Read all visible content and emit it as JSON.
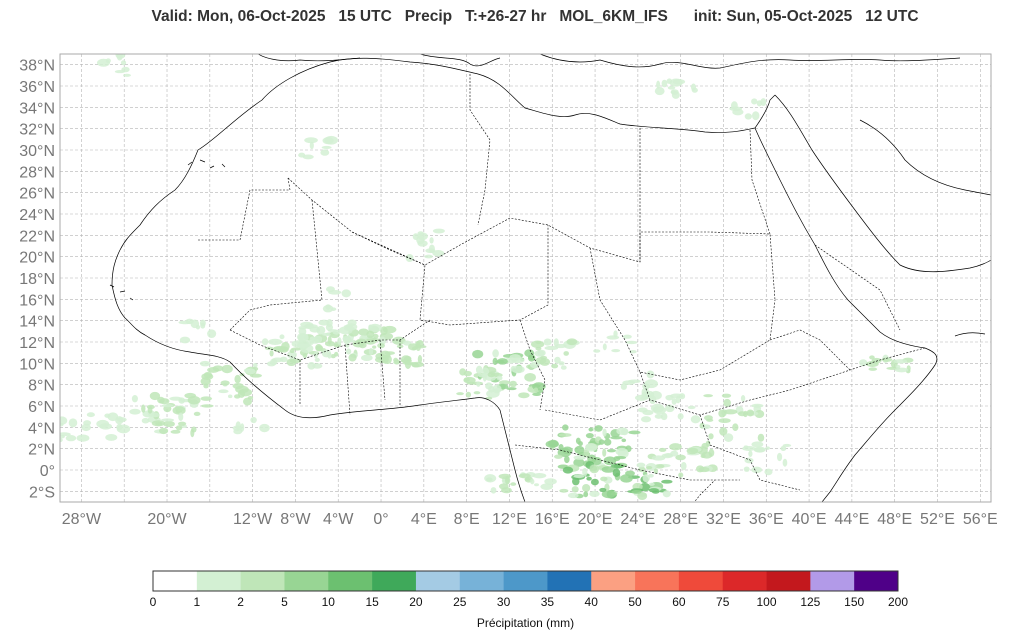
{
  "title": {
    "valid": "Valid: Mon, 06-Oct-2025   15 UTC   Precip   T:+26-27 hr   MOL_6KM_IFS",
    "init": "init: Sun, 05-Oct-2025   12 UTC"
  },
  "map": {
    "lon_range": [
      -30,
      57
    ],
    "lat_range": [
      -3,
      39
    ],
    "grid": true,
    "lat_ticks": [
      "38°N",
      "36°N",
      "34°N",
      "32°N",
      "30°N",
      "28°N",
      "26°N",
      "24°N",
      "22°N",
      "20°N",
      "18°N",
      "16°N",
      "14°N",
      "12°N",
      "10°N",
      "8°N",
      "6°N",
      "4°N",
      "2°N",
      "0°",
      "2°S"
    ],
    "lon_ticks": [
      "28°W",
      "20°W",
      "12°W",
      "8°W",
      "4°W",
      "0°",
      "4°E",
      "8°E",
      "12°E",
      "16°E",
      "20°E",
      "24°E",
      "28°E",
      "32°E",
      "36°E",
      "40°E",
      "44°E",
      "48°E",
      "52°E",
      "56°E"
    ]
  },
  "colorbar": {
    "label": "Précipitation (mm)",
    "levels": [
      "0",
      "1",
      "2",
      "5",
      "10",
      "15",
      "20",
      "25",
      "30",
      "35",
      "40",
      "50",
      "60",
      "75",
      "100",
      "125",
      "150",
      "200"
    ],
    "colors": [
      "#ffffff",
      "#d3f0d3",
      "#bfe6b8",
      "#98d594",
      "#6cc070",
      "#3fa95a",
      "#a4cbe4",
      "#77b2d8",
      "#4d98c9",
      "#2272b5",
      "#fba082",
      "#f8745a",
      "#ef4a3a",
      "#dc2829",
      "#c3181d",
      "#b29ae8",
      "#4f0088"
    ]
  }
}
